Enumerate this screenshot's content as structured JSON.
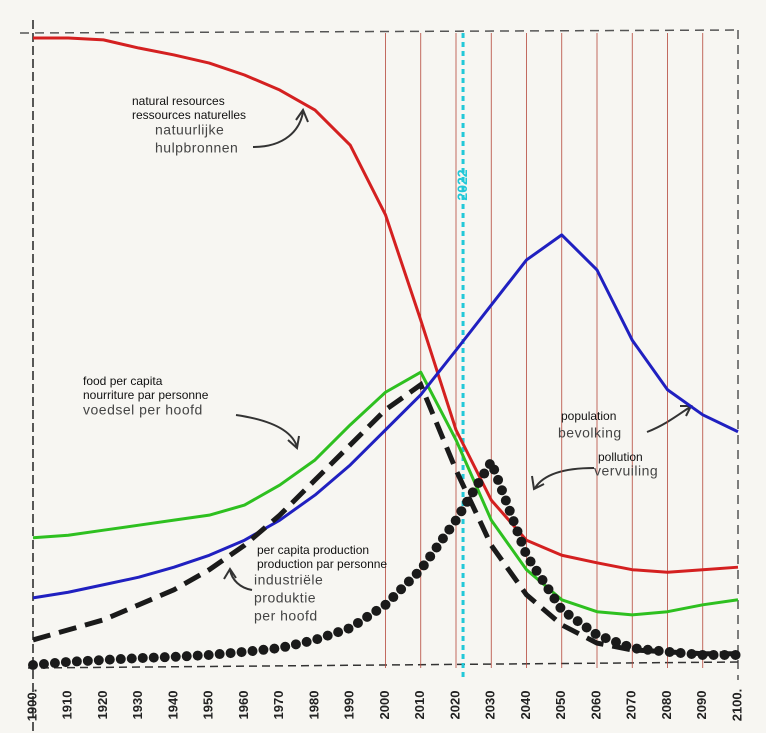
{
  "chart_data": {
    "type": "line",
    "x": [
      1900,
      1910,
      1920,
      1930,
      1940,
      1950,
      1960,
      1970,
      1980,
      1990,
      2000,
      2010,
      2020,
      2030,
      2040,
      2050,
      2060,
      2070,
      2080,
      2090,
      2100
    ],
    "xlim": [
      1900,
      2100
    ],
    "ylim": [
      0,
      100
    ],
    "xticks": [
      {
        "value": 1900,
        "label": "1900."
      },
      1910,
      1920,
      1930,
      1940,
      1950,
      1960,
      1970,
      1980,
      1990,
      2000,
      2010,
      2020,
      2030,
      2040,
      2050,
      2060,
      2070,
      2080,
      2090,
      {
        "value": 2100,
        "label": "2100."
      }
    ],
    "grid_start": 2000,
    "grid_color": "#b5473a",
    "marker": {
      "x": 2022,
      "label": "2022",
      "color": "#22c8d8"
    },
    "series": [
      {
        "name": "natural resources",
        "name_fr": "ressources naturelles",
        "name_nl": [
          "natuurlijke",
          "hulpbronnen"
        ],
        "color": "#d42020",
        "style": "solid",
        "values": [
          100,
          100,
          99.7,
          98.4,
          97.3,
          96,
          94.1,
          91.7,
          88.5,
          82.9,
          71.8,
          55,
          37.5,
          26.3,
          19.9,
          17.5,
          16.3,
          15.2,
          14.8,
          15.2,
          15.6
        ]
      },
      {
        "name": "food per capita",
        "name_fr": "nourriture par personne",
        "name_nl": [
          "voedsel per hoofd"
        ],
        "color": "#2ec020",
        "style": "solid",
        "values": [
          20.3,
          20.7,
          21.5,
          22.3,
          23.1,
          23.9,
          25.5,
          28.7,
          32.7,
          38.3,
          43.5,
          46.7,
          35.9,
          23.1,
          15.2,
          10.4,
          8.5,
          8.0,
          8.5,
          9.6,
          10.4
        ]
      },
      {
        "name": "population",
        "name_nl": [
          "bevolking"
        ],
        "color": "#2020c0",
        "style": "solid",
        "values": [
          10.7,
          11.6,
          12.8,
          14.0,
          15.6,
          17.5,
          19.9,
          23.1,
          27.1,
          31.9,
          37.5,
          43.1,
          50.2,
          57.4,
          64.6,
          68.6,
          63.0,
          51.8,
          43.9,
          39.9,
          37.2
        ]
      },
      {
        "name": "pollution",
        "name_nl": [
          "vervuiling"
        ],
        "color": "#1a1a1a",
        "style": "dotted",
        "values": [
          0,
          0.5,
          0.8,
          1.1,
          1.3,
          1.6,
          2.1,
          2.7,
          4.0,
          5.9,
          9.6,
          15.2,
          23.1,
          32.4,
          17.5,
          8.8,
          4.8,
          2.7,
          2.1,
          1.6,
          1.6
        ]
      },
      {
        "name": "per capita production",
        "name_fr": "production par personne",
        "name_nl": [
          "industriële",
          "produktie",
          "per hoofd"
        ],
        "color": "#1a1a1a",
        "style": "dashed",
        "values": [
          4.0,
          5.6,
          7.2,
          9.6,
          12.0,
          15.2,
          19.1,
          23.9,
          29.5,
          35.1,
          40.7,
          44.7,
          31.1,
          19.1,
          11.2,
          6.4,
          3.5,
          2.4,
          2.1,
          1.8,
          1.8
        ]
      }
    ]
  }
}
